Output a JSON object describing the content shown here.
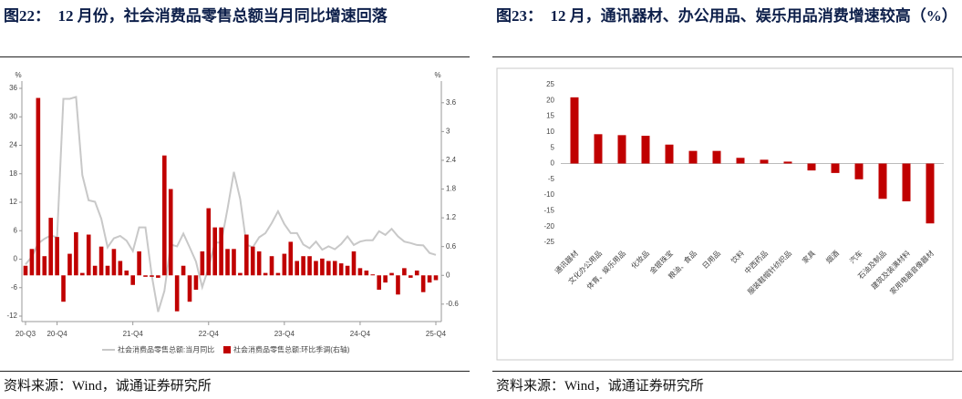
{
  "chart_data": [
    {
      "type": "combo",
      "title": "图22：　12 月份，社会消费品零售总额当月同比增速回落",
      "source": "资料来源：Wind，诚通证券研究所",
      "y_unit": "%",
      "y2_unit": "%",
      "categories": [
        "20-Q3",
        null,
        null,
        null,
        null,
        "20-Q4",
        null,
        null,
        null,
        null,
        null,
        null,
        null,
        null,
        null,
        null,
        null,
        "21-Q4",
        null,
        null,
        null,
        null,
        null,
        null,
        null,
        null,
        null,
        null,
        null,
        "22-Q4",
        null,
        null,
        null,
        null,
        null,
        null,
        null,
        null,
        null,
        null,
        null,
        "23-Q4",
        null,
        null,
        null,
        null,
        null,
        null,
        null,
        null,
        null,
        null,
        null,
        "24-Q4",
        null,
        null,
        null,
        null,
        null,
        null,
        null,
        null,
        null,
        null,
        null,
        "25-Q4"
      ],
      "ylim": [
        -12,
        36
      ],
      "yticks": [
        -12,
        -6,
        0,
        6,
        12,
        18,
        24,
        30,
        36
      ],
      "y2lim": [
        -0.85,
        3.9
      ],
      "y2ticks": [
        -0.6,
        0,
        0.6,
        1.2,
        1.8,
        2.4,
        3,
        3.6
      ],
      "legend": "bottom",
      "series": [
        {
          "name": "社会消费品零售总额:当月同比",
          "type": "line",
          "color": "#c8c8c8",
          "values": [
            -1.1,
            0.5,
            3.3,
            4.3,
            5.0,
            4.6,
            33.8,
            33.8,
            34.2,
            17.7,
            12.4,
            12.1,
            8.5,
            2.5,
            4.4,
            4.9,
            3.9,
            1.7,
            6.7,
            6.7,
            -3.5,
            -11.1,
            -6.7,
            3.1,
            2.7,
            5.4,
            2.5,
            -0.5,
            -5.9,
            -1.8,
            3.5,
            3.5,
            10.6,
            18.4,
            12.7,
            3.1,
            2.5,
            4.6,
            5.5,
            7.6,
            10.1,
            7.4,
            5.5,
            5.5,
            3.1,
            2.3,
            3.7,
            2.0,
            2.7,
            2.1,
            3.2,
            4.8,
            3.0,
            3.7,
            4.0,
            4.0,
            5.9,
            5.1,
            6.4,
            4.8,
            3.7,
            3.4,
            3.0,
            2.9,
            1.3,
            0.9
          ]
        },
        {
          "name": "社会消费品零售总额:环比季调(右轴)",
          "type": "bar",
          "axis": "y2",
          "color": "#c00000",
          "values": [
            0.2,
            0.55,
            3.7,
            0.4,
            1.2,
            0.8,
            -0.55,
            0.45,
            0.9,
            0.05,
            0.85,
            0.2,
            0.6,
            0.2,
            0.55,
            0.3,
            0.1,
            -0.2,
            0.5,
            -0.03,
            -0.03,
            -0.05,
            2.5,
            1.8,
            -0.75,
            0.2,
            -0.55,
            -0.3,
            0.5,
            1.4,
            1.0,
            1.0,
            0.55,
            0.55,
            0.05,
            0.85,
            0.6,
            0.5,
            0.05,
            0.4,
            0.05,
            0.45,
            0.7,
            0.3,
            0.4,
            0.4,
            0.3,
            0.35,
            0.3,
            0.3,
            0.25,
            0.2,
            0.5,
            0.15,
            0.1,
            0.02,
            -0.3,
            -0.15,
            0.05,
            -0.4,
            0.15,
            -0.05,
            0.1,
            -0.35,
            -0.15,
            -0.1
          ]
        }
      ]
    },
    {
      "type": "bar",
      "title": "图23：　12 月，通讯器材、办公用品、娱乐用品消费增速较高（%）",
      "source": "资料来源：Wind，诚通证券研究所",
      "categories": [
        "通讯器材",
        "文化办公用品",
        "体育、娱乐用品",
        "化妆品",
        "金银珠宝",
        "粮油、食品",
        "日用品",
        "饮料",
        "中西药品",
        "服装鞋帽针纺织品",
        "家具",
        "烟酒",
        "汽车",
        "石油及制品",
        "建筑及装潢材料",
        "家用电器音像器材"
      ],
      "values": [
        21,
        9.3,
        9,
        8.8,
        6,
        4,
        4,
        1.8,
        1.2,
        0.6,
        -2.2,
        -3,
        -5,
        -11.2,
        -12,
        -19
      ],
      "color": "#c00000",
      "ylim": [
        -25,
        25
      ],
      "yticks": [
        -25,
        -20,
        -15,
        -10,
        -5,
        0,
        5,
        10,
        15,
        20,
        25
      ]
    }
  ]
}
